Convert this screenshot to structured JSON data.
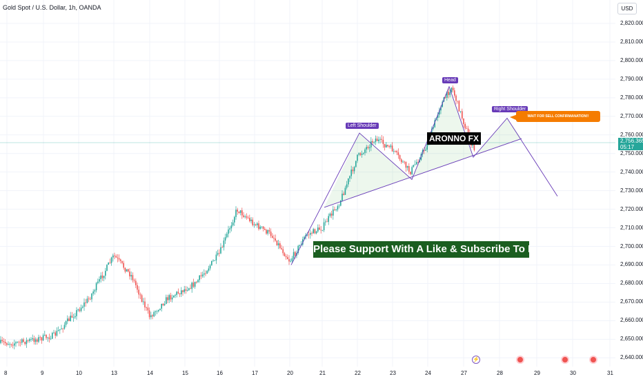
{
  "header": {
    "title": "Gold Spot / U.S. Dollar, 1h, OANDA",
    "currency_button": "USD"
  },
  "price_tag": {
    "price": "2,756.365",
    "countdown": "05:17"
  },
  "annotations": {
    "left_shoulder": "Left Shoulder",
    "head": "Head",
    "right_shoulder": "Right Shoulder",
    "warning": "WAIT FOR SELL CONFIRMANATION!!",
    "brand": "ARONNO FX",
    "support": "Please Support With A Like & Subscribe To Me"
  },
  "colors": {
    "up": "#26a69a",
    "down": "#ef5350",
    "pattern": "#673ab7",
    "warning": "#f57c00",
    "support": "#1b5e20",
    "brand": "#000000"
  },
  "events": [
    {
      "icon": "lightning-icon",
      "day": "27"
    },
    {
      "icon": "us-flag-icon",
      "day": "28"
    },
    {
      "icon": "us-flag-icon",
      "day": "29"
    },
    {
      "icon": "us-flag-icon",
      "day": "30"
    }
  ],
  "chart_data": {
    "type": "candlestick",
    "title": "Gold Spot / U.S. Dollar, 1h, OANDA",
    "ylim": [
      2640,
      2830
    ],
    "x_tick_labels": [
      "8",
      "9",
      "10",
      "13",
      "14",
      "15",
      "16",
      "17",
      "20",
      "21",
      "22",
      "23",
      "24",
      "27",
      "28",
      "29",
      "30",
      "31"
    ],
    "y_tick_labels": [
      "2,820.000",
      "2,810.000",
      "2,800.000",
      "2,790.000",
      "2,780.000",
      "2,770.000",
      "2,760.000",
      "2,750.000",
      "2,740.000",
      "2,730.000",
      "2,720.000",
      "2,710.000",
      "2,700.000",
      "2,690.000",
      "2,680.000",
      "2,670.000",
      "2,660.000",
      "2,650.000",
      "2,640.000"
    ],
    "y_ticks": [
      2820,
      2810,
      2800,
      2790,
      2780,
      2770,
      2760,
      2750,
      2740,
      2730,
      2720,
      2710,
      2700,
      2690,
      2680,
      2670,
      2660,
      2650,
      2640
    ],
    "last_price": 2756.365,
    "price_path": [
      {
        "day": "8",
        "price": 2648
      },
      {
        "day": "9",
        "price": 2652
      },
      {
        "day": "10",
        "price": 2672
      },
      {
        "day": "13",
        "price": 2695
      },
      {
        "day": "13",
        "price": 2684
      },
      {
        "day": "14",
        "price": 2662
      },
      {
        "day": "14",
        "price": 2672
      },
      {
        "day": "15",
        "price": 2680
      },
      {
        "day": "16",
        "price": 2696
      },
      {
        "day": "16",
        "price": 2720
      },
      {
        "day": "17",
        "price": 2712
      },
      {
        "day": "17",
        "price": 2706
      },
      {
        "day": "20",
        "price": 2692
      },
      {
        "day": "20",
        "price": 2706
      },
      {
        "day": "21",
        "price": 2710
      },
      {
        "day": "21",
        "price": 2724
      },
      {
        "day": "22",
        "price": 2748
      },
      {
        "day": "22",
        "price": 2758
      },
      {
        "day": "23",
        "price": 2752
      },
      {
        "day": "23",
        "price": 2740
      },
      {
        "day": "24",
        "price": 2755
      },
      {
        "day": "24",
        "price": 2775
      },
      {
        "day": "24",
        "price": 2786
      },
      {
        "day": "27",
        "price": 2767
      },
      {
        "day": "27",
        "price": 2749
      },
      {
        "day": "27",
        "price": 2756.365
      }
    ],
    "pattern": {
      "name": "Head and Shoulders",
      "points": [
        {
          "label": "",
          "day": "20",
          "price": 2690
        },
        {
          "label": "Left Shoulder",
          "day": "22",
          "price": 2761
        },
        {
          "label": "",
          "day": "23",
          "price": 2736
        },
        {
          "label": "Head",
          "day": "24",
          "price": 2786
        },
        {
          "label": "",
          "day": "27",
          "price": 2748
        },
        {
          "label": "Right Shoulder",
          "day": "28",
          "price": 2769
        },
        {
          "label": "",
          "day": "29",
          "price": 2727
        }
      ],
      "neckline": [
        {
          "day": "21",
          "price": 2721
        },
        {
          "day": "28",
          "price": 2758
        }
      ]
    }
  }
}
